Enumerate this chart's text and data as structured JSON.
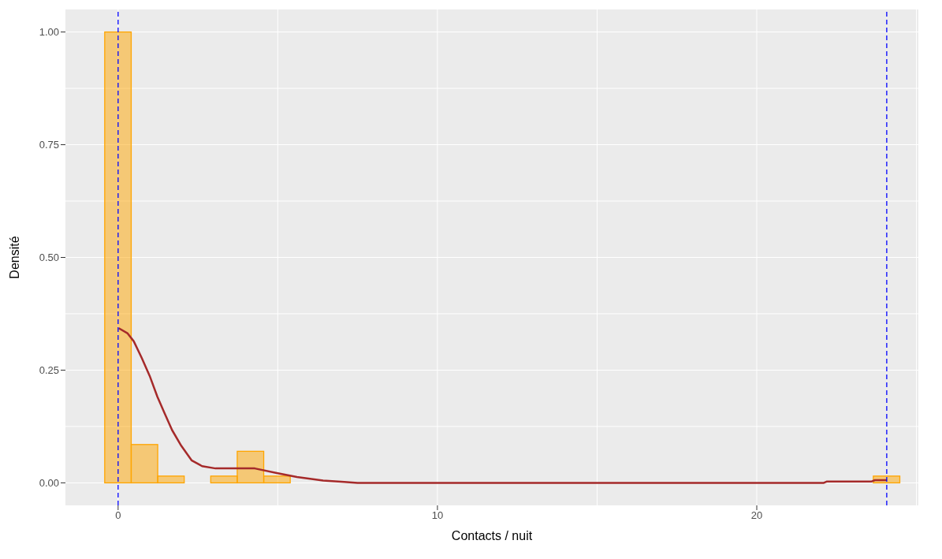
{
  "chart_data": {
    "type": "histogram",
    "xlabel": "Contacts / nuit",
    "ylabel": "Densité",
    "bins": [
      -0.42,
      0.41,
      1.24,
      2.07,
      2.9,
      3.73,
      4.56,
      5.39,
      6.22,
      7.05,
      7.88,
      8.71,
      9.54,
      10.37,
      11.2,
      12.03,
      12.86,
      13.69,
      14.52,
      15.35,
      16.18,
      17.01,
      17.84,
      18.67,
      19.5,
      20.33,
      21.16,
      21.99,
      22.82,
      23.65,
      24.48
    ],
    "series": [
      {
        "color": "#ffa500",
        "values": [
          1,
          0.085,
          0.015,
          0,
          0.015,
          0.07,
          0.015,
          0,
          0,
          0,
          0,
          0,
          0,
          0,
          0,
          0,
          0,
          0,
          0,
          0,
          0,
          0,
          0,
          0,
          0,
          0,
          0,
          0,
          0,
          0.015
        ]
      },
      {
        "type": "line",
        "color": "#a52a2a",
        "x": [
          0.02,
          0.29,
          0.49,
          0.74,
          0.99,
          1.23,
          1.44,
          1.69,
          1.98,
          2.3,
          2.63,
          3.05,
          4.28,
          4.94,
          5.6,
          6.42,
          7.08,
          7.5,
          22.1,
          22.2,
          23.6,
          23.7,
          24.07
        ],
        "values": [
          0.343,
          0.332,
          0.314,
          0.277,
          0.237,
          0.191,
          0.157,
          0.117,
          0.082,
          0.05,
          0.037,
          0.032,
          0.032,
          0.022,
          0.013,
          0.005,
          0.002,
          0,
          0,
          0.003,
          0.003,
          0.006,
          0.006
        ]
      }
    ],
    "xlim": [
      -1.65,
      25.06
    ],
    "ylim": [
      -0.05,
      1.05
    ],
    "xticks": [
      0,
      10,
      20
    ],
    "yticks": [
      {
        "value": 0,
        "label": "0.00"
      },
      {
        "value": 0.25,
        "label": "0.25"
      },
      {
        "value": 0.5,
        "label": "0.50"
      },
      {
        "value": 0.75,
        "label": "0.75"
      },
      {
        "value": 1,
        "label": "1.00"
      }
    ],
    "grid": true,
    "legend": false,
    "ref_lines": [
      {
        "axis": "x",
        "value": 0,
        "color": "#0000ff",
        "line_style": "dashed"
      },
      {
        "axis": "x",
        "value": 24.07,
        "color": "#0000ff",
        "line_style": "dashed"
      }
    ]
  }
}
